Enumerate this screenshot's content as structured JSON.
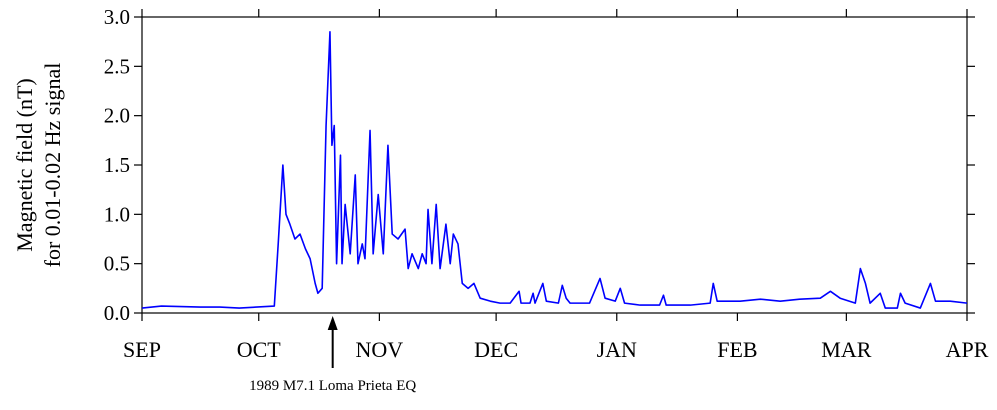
{
  "chart_data": {
    "type": "line",
    "ylabel": [
      "Magnetic field (nT)",
      "for 0.01-0.02 Hz signal"
    ],
    "annotation": {
      "text": "1989 M7.1 Loma Prieta EQ",
      "x": 49
    },
    "xlim": [
      0,
      212
    ],
    "xticks": [
      {
        "value": 0,
        "label": "SEP"
      },
      {
        "value": 30,
        "label": "OCT"
      },
      {
        "value": 61,
        "label": "NOV"
      },
      {
        "value": 91,
        "label": "DEC"
      },
      {
        "value": 122,
        "label": "JAN"
      },
      {
        "value": 153,
        "label": "FEB"
      },
      {
        "value": 181,
        "label": "MAR"
      },
      {
        "value": 212,
        "label": "APR"
      }
    ],
    "ylim": [
      0,
      3
    ],
    "yticks": [
      {
        "value": 0,
        "label": "0.0"
      },
      0.5,
      {
        "value": 1,
        "label": "1.0"
      },
      1.5,
      {
        "value": 2,
        "label": "2.0"
      },
      2.5,
      {
        "value": 3,
        "label": "3.0"
      }
    ],
    "series": [
      {
        "color": "#0000ff",
        "x": [
          0,
          5,
          15,
          20,
          25,
          34,
          35,
          36.2,
          37,
          38,
          39.3,
          40.6,
          42,
          43.2,
          44.5,
          45.2,
          46.3,
          47.3,
          48.3,
          48.8,
          49.4,
          50,
          51,
          51.4,
          52.2,
          53.5,
          54.8,
          55.5,
          56.6,
          57.3,
          58.6,
          59.4,
          60.7,
          62,
          63.2,
          64.3,
          65.8,
          67.6,
          68.4,
          69.4,
          71,
          72,
          73,
          73.5,
          74.5,
          75.6,
          76.6,
          78.1,
          79.2,
          80,
          81.2,
          82.3,
          83.8,
          85.3,
          86.9,
          89.5,
          92,
          94.6,
          96.9,
          97.4,
          99.7,
          100.5,
          101,
          103,
          103.9,
          107,
          108,
          109,
          110,
          115,
          117.7,
          119,
          121.6,
          122.9,
          124,
          128,
          133,
          134,
          134.7,
          140.9,
          146,
          146.8,
          147.8,
          153.7,
          158.9,
          164,
          169,
          174.3,
          176.9,
          179.4,
          183.3,
          184.6,
          185.9,
          187.1,
          189.7,
          191,
          194.1,
          194.9,
          196.1,
          200,
          202.6,
          203.9,
          207.7,
          212
        ],
        "values": [
          0.05,
          0.07,
          0.06,
          0.06,
          0.05,
          0.07,
          0.7,
          1.5,
          1.0,
          0.9,
          0.75,
          0.8,
          0.65,
          0.55,
          0.3,
          0.2,
          0.25,
          1.9,
          2.85,
          1.7,
          1.9,
          0.5,
          1.6,
          0.5,
          1.1,
          0.6,
          1.4,
          0.5,
          0.7,
          0.55,
          1.85,
          0.6,
          1.2,
          0.6,
          1.7,
          0.8,
          0.75,
          0.85,
          0.45,
          0.6,
          0.45,
          0.6,
          0.5,
          1.05,
          0.5,
          1.1,
          0.45,
          0.9,
          0.5,
          0.8,
          0.7,
          0.3,
          0.25,
          0.3,
          0.15,
          0.12,
          0.1,
          0.1,
          0.22,
          0.1,
          0.1,
          0.2,
          0.1,
          0.3,
          0.12,
          0.1,
          0.28,
          0.15,
          0.1,
          0.1,
          0.35,
          0.15,
          0.12,
          0.25,
          0.1,
          0.08,
          0.08,
          0.18,
          0.08,
          0.08,
          0.1,
          0.3,
          0.12,
          0.12,
          0.14,
          0.12,
          0.14,
          0.15,
          0.22,
          0.15,
          0.1,
          0.45,
          0.3,
          0.1,
          0.2,
          0.05,
          0.05,
          0.2,
          0.1,
          0.05,
          0.3,
          0.12,
          0.12,
          0.1
        ]
      }
    ]
  }
}
